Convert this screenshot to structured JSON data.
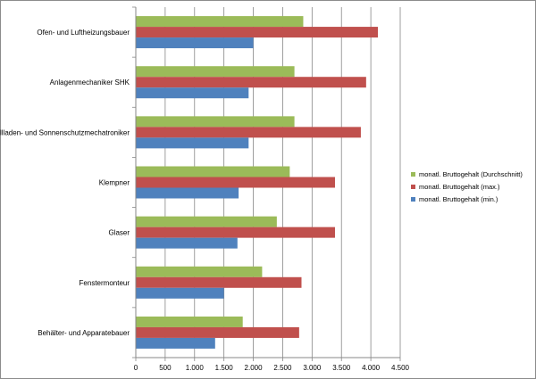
{
  "chart_data": {
    "type": "bar",
    "orientation": "horizontal",
    "title": "",
    "xlabel": "",
    "ylabel": "",
    "categories": [
      "Ofen- und Luftheizungsbauer",
      "Anlagenmechaniker SHK",
      "Rollladen- und Sonnenschutzmechatroniker",
      "Klempner",
      "Glaser",
      "Fenstermonteur",
      "Behälter- und Apparatebauer"
    ],
    "series": [
      {
        "name": "monatl. Bruttogehalt (Durchschnitt)",
        "color": "#9bbb59",
        "values": [
          2850,
          2700,
          2700,
          2620,
          2400,
          2150,
          1820
        ]
      },
      {
        "name": "monatl. Bruttogehalt (max.)",
        "color": "#c0504d",
        "values": [
          4120,
          3920,
          3830,
          3390,
          3390,
          2820,
          2780
        ]
      },
      {
        "name": "monatl. Bruttogehalt (min.)",
        "color": "#4f81bd",
        "values": [
          2000,
          1920,
          1920,
          1750,
          1730,
          1500,
          1350
        ]
      }
    ],
    "xlim": [
      0,
      4500
    ],
    "xticks": [
      0,
      500,
      1000,
      1500,
      2000,
      2500,
      3000,
      3500,
      4000,
      4500
    ],
    "xtick_labels": [
      "0",
      "500",
      "1.000",
      "1.500",
      "2.000",
      "2.500",
      "3.000",
      "3.500",
      "4.000",
      "4.500"
    ],
    "grid": true,
    "legend": {
      "position": "right",
      "entries": [
        "monatl. Bruttogehalt (Durchschnitt)",
        "monatl. Bruttogehalt (max.)",
        "monatl. Bruttogehalt (min.)"
      ]
    }
  }
}
